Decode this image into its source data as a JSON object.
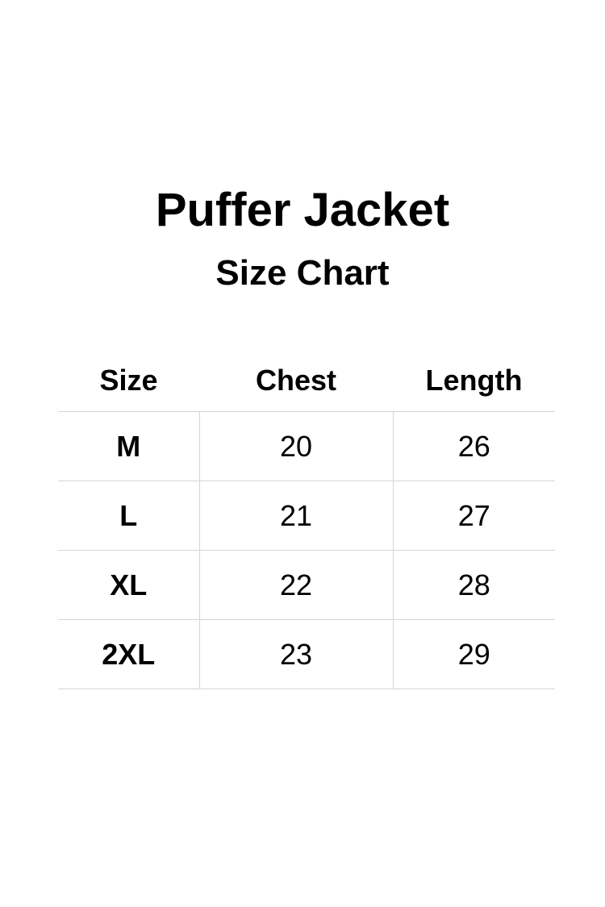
{
  "title": "Puffer Jacket",
  "subtitle": "Size Chart",
  "table": {
    "headers": [
      "Size",
      "Chest",
      "Length"
    ],
    "rows": [
      [
        "M",
        "20",
        "26"
      ],
      [
        "L",
        "21",
        "27"
      ],
      [
        "XL",
        "22",
        "28"
      ],
      [
        "2XL",
        "23",
        "29"
      ]
    ]
  },
  "colors": {
    "text": "#000000",
    "divider": "#d6d6d6",
    "background": "#ffffff"
  }
}
